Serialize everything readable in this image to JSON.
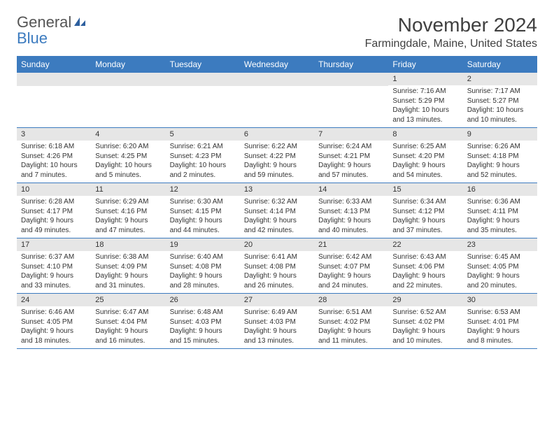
{
  "brand": {
    "general": "General",
    "blue": "Blue"
  },
  "title": "November 2024",
  "location": "Farmingdale, Maine, United States",
  "header_color": "#3c7bbf",
  "border_color": "#3c7bbf",
  "daynum_bg": "#e6e6e6",
  "day_names": [
    "Sunday",
    "Monday",
    "Tuesday",
    "Wednesday",
    "Thursday",
    "Friday",
    "Saturday"
  ],
  "weeks": [
    [
      {
        "n": "",
        "sr": "",
        "ss": "",
        "dl": ""
      },
      {
        "n": "",
        "sr": "",
        "ss": "",
        "dl": ""
      },
      {
        "n": "",
        "sr": "",
        "ss": "",
        "dl": ""
      },
      {
        "n": "",
        "sr": "",
        "ss": "",
        "dl": ""
      },
      {
        "n": "",
        "sr": "",
        "ss": "",
        "dl": ""
      },
      {
        "n": "1",
        "sr": "Sunrise: 7:16 AM",
        "ss": "Sunset: 5:29 PM",
        "dl": "Daylight: 10 hours and 13 minutes."
      },
      {
        "n": "2",
        "sr": "Sunrise: 7:17 AM",
        "ss": "Sunset: 5:27 PM",
        "dl": "Daylight: 10 hours and 10 minutes."
      }
    ],
    [
      {
        "n": "3",
        "sr": "Sunrise: 6:18 AM",
        "ss": "Sunset: 4:26 PM",
        "dl": "Daylight: 10 hours and 7 minutes."
      },
      {
        "n": "4",
        "sr": "Sunrise: 6:20 AM",
        "ss": "Sunset: 4:25 PM",
        "dl": "Daylight: 10 hours and 5 minutes."
      },
      {
        "n": "5",
        "sr": "Sunrise: 6:21 AM",
        "ss": "Sunset: 4:23 PM",
        "dl": "Daylight: 10 hours and 2 minutes."
      },
      {
        "n": "6",
        "sr": "Sunrise: 6:22 AM",
        "ss": "Sunset: 4:22 PM",
        "dl": "Daylight: 9 hours and 59 minutes."
      },
      {
        "n": "7",
        "sr": "Sunrise: 6:24 AM",
        "ss": "Sunset: 4:21 PM",
        "dl": "Daylight: 9 hours and 57 minutes."
      },
      {
        "n": "8",
        "sr": "Sunrise: 6:25 AM",
        "ss": "Sunset: 4:20 PM",
        "dl": "Daylight: 9 hours and 54 minutes."
      },
      {
        "n": "9",
        "sr": "Sunrise: 6:26 AM",
        "ss": "Sunset: 4:18 PM",
        "dl": "Daylight: 9 hours and 52 minutes."
      }
    ],
    [
      {
        "n": "10",
        "sr": "Sunrise: 6:28 AM",
        "ss": "Sunset: 4:17 PM",
        "dl": "Daylight: 9 hours and 49 minutes."
      },
      {
        "n": "11",
        "sr": "Sunrise: 6:29 AM",
        "ss": "Sunset: 4:16 PM",
        "dl": "Daylight: 9 hours and 47 minutes."
      },
      {
        "n": "12",
        "sr": "Sunrise: 6:30 AM",
        "ss": "Sunset: 4:15 PM",
        "dl": "Daylight: 9 hours and 44 minutes."
      },
      {
        "n": "13",
        "sr": "Sunrise: 6:32 AM",
        "ss": "Sunset: 4:14 PM",
        "dl": "Daylight: 9 hours and 42 minutes."
      },
      {
        "n": "14",
        "sr": "Sunrise: 6:33 AM",
        "ss": "Sunset: 4:13 PM",
        "dl": "Daylight: 9 hours and 40 minutes."
      },
      {
        "n": "15",
        "sr": "Sunrise: 6:34 AM",
        "ss": "Sunset: 4:12 PM",
        "dl": "Daylight: 9 hours and 37 minutes."
      },
      {
        "n": "16",
        "sr": "Sunrise: 6:36 AM",
        "ss": "Sunset: 4:11 PM",
        "dl": "Daylight: 9 hours and 35 minutes."
      }
    ],
    [
      {
        "n": "17",
        "sr": "Sunrise: 6:37 AM",
        "ss": "Sunset: 4:10 PM",
        "dl": "Daylight: 9 hours and 33 minutes."
      },
      {
        "n": "18",
        "sr": "Sunrise: 6:38 AM",
        "ss": "Sunset: 4:09 PM",
        "dl": "Daylight: 9 hours and 31 minutes."
      },
      {
        "n": "19",
        "sr": "Sunrise: 6:40 AM",
        "ss": "Sunset: 4:08 PM",
        "dl": "Daylight: 9 hours and 28 minutes."
      },
      {
        "n": "20",
        "sr": "Sunrise: 6:41 AM",
        "ss": "Sunset: 4:08 PM",
        "dl": "Daylight: 9 hours and 26 minutes."
      },
      {
        "n": "21",
        "sr": "Sunrise: 6:42 AM",
        "ss": "Sunset: 4:07 PM",
        "dl": "Daylight: 9 hours and 24 minutes."
      },
      {
        "n": "22",
        "sr": "Sunrise: 6:43 AM",
        "ss": "Sunset: 4:06 PM",
        "dl": "Daylight: 9 hours and 22 minutes."
      },
      {
        "n": "23",
        "sr": "Sunrise: 6:45 AM",
        "ss": "Sunset: 4:05 PM",
        "dl": "Daylight: 9 hours and 20 minutes."
      }
    ],
    [
      {
        "n": "24",
        "sr": "Sunrise: 6:46 AM",
        "ss": "Sunset: 4:05 PM",
        "dl": "Daylight: 9 hours and 18 minutes."
      },
      {
        "n": "25",
        "sr": "Sunrise: 6:47 AM",
        "ss": "Sunset: 4:04 PM",
        "dl": "Daylight: 9 hours and 16 minutes."
      },
      {
        "n": "26",
        "sr": "Sunrise: 6:48 AM",
        "ss": "Sunset: 4:03 PM",
        "dl": "Daylight: 9 hours and 15 minutes."
      },
      {
        "n": "27",
        "sr": "Sunrise: 6:49 AM",
        "ss": "Sunset: 4:03 PM",
        "dl": "Daylight: 9 hours and 13 minutes."
      },
      {
        "n": "28",
        "sr": "Sunrise: 6:51 AM",
        "ss": "Sunset: 4:02 PM",
        "dl": "Daylight: 9 hours and 11 minutes."
      },
      {
        "n": "29",
        "sr": "Sunrise: 6:52 AM",
        "ss": "Sunset: 4:02 PM",
        "dl": "Daylight: 9 hours and 10 minutes."
      },
      {
        "n": "30",
        "sr": "Sunrise: 6:53 AM",
        "ss": "Sunset: 4:01 PM",
        "dl": "Daylight: 9 hours and 8 minutes."
      }
    ]
  ]
}
